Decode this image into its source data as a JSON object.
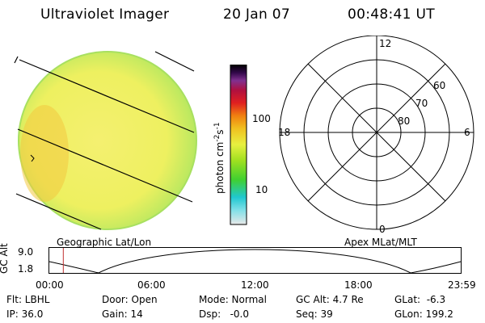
{
  "header": {
    "instrument": "Ultraviolet Imager",
    "date": "20 Jan 07",
    "time": "00:48:41 UT"
  },
  "colorbar": {
    "unit_label": "photon cm",
    "unit_exp1": "-2",
    "unit_s": "s",
    "unit_exp2": "-1",
    "ticks": [
      "100",
      "10"
    ],
    "stops": [
      "#e8e8e8",
      "#80e0e8",
      "#20c8d0",
      "#40d030",
      "#a0e020",
      "#e8f040",
      "#f0c020",
      "#f08010",
      "#e02020",
      "#b01040",
      "#803090",
      "#300848",
      "#000000"
    ]
  },
  "image_panel": {
    "dominant_color": "#f0f060",
    "edge_color": "#a8e060"
  },
  "polar_panel": {
    "mlt_labels": {
      "top": "12",
      "bottom": "0",
      "left": "18",
      "right": "6"
    },
    "lat_labels": [
      "60",
      "70",
      "80"
    ]
  },
  "timeline": {
    "axis_title": "GC Alt",
    "y_ticks": [
      "9.0",
      "1.8"
    ],
    "left_caption": "Geographic Lat/Lon",
    "right_caption": "Apex MLat/MLT",
    "x_ticks": [
      "00:00",
      "06:00",
      "12:00",
      "18:00",
      "23:59"
    ],
    "current_time_fraction": 0.034
  },
  "footer": {
    "filter": "Flt: LBHL",
    "door": "Door: Open",
    "mode": "Mode: Normal",
    "gc_alt": "GC Alt: 4.7 Re",
    "glat": "GLat:  -6.3",
    "ip": "IP: 36.0",
    "gain": "Gain: 14",
    "dsp": "Dsp:   -0.0",
    "seq": "Seq: 39",
    "glon": "GLon: 199.2"
  }
}
